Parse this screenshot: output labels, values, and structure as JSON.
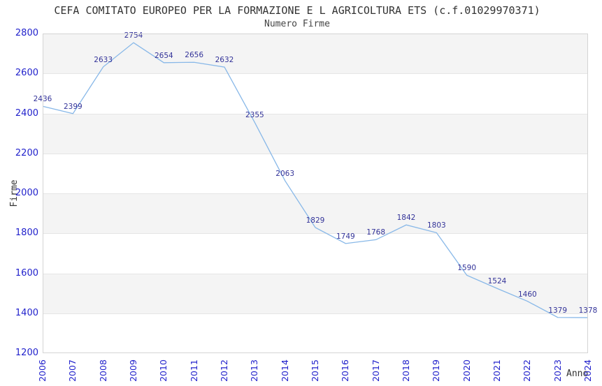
{
  "title": "CEFA COMITATO EUROPEO PER LA FORMAZIONE E L AGRICOLTURA ETS (c.f.01029970371)",
  "subtitle": "Numero Firme",
  "chart_data": {
    "type": "line",
    "title": "CEFA COMITATO EUROPEO PER LA FORMAZIONE E L AGRICOLTURA ETS (c.f.01029970371)",
    "subtitle": "Numero Firme",
    "xlabel": "Anno",
    "ylabel": "Firme",
    "categories": [
      "2006",
      "2007",
      "2008",
      "2009",
      "2010",
      "2011",
      "2012",
      "2013",
      "2014",
      "2015",
      "2016",
      "2017",
      "2018",
      "2019",
      "2020",
      "2021",
      "2022",
      "2023",
      "2024"
    ],
    "series": [
      {
        "name": "Numero Firme",
        "values": [
          2436,
          2399,
          2633,
          2754,
          2654,
          2656,
          2632,
          2355,
          2063,
          1829,
          1749,
          1768,
          1842,
          1803,
          1590,
          1524,
          1460,
          1379,
          1378
        ]
      }
    ],
    "ylim": [
      1200,
      2800
    ],
    "y_ticks": [
      1200,
      1400,
      1600,
      1800,
      2000,
      2200,
      2400,
      2600,
      2800
    ],
    "grid": "alternating-horizontal-bands",
    "legend_position": "none",
    "data_labels": true,
    "colors": {
      "line": "#88b8e8",
      "data_label": "#333399",
      "tick_label": "#2222cc",
      "band_gray": "#f4f4f4",
      "band_white": "#ffffff",
      "gridline": "#e5e5e5",
      "plot_border": "#d4d4d4",
      "text": "#333333"
    }
  }
}
